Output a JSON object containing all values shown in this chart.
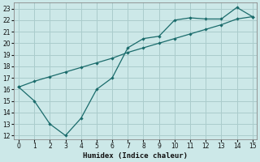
{
  "xlabel": "Humidex (Indice chaleur)",
  "bg_color": "#cce8e8",
  "grid_color": "#aacccc",
  "line_color": "#1a6b6b",
  "jagged_x": [
    0,
    1,
    2,
    3,
    4,
    5,
    6,
    7,
    8,
    9,
    10,
    11,
    12,
    13,
    14,
    15
  ],
  "jagged_y": [
    16.2,
    15.0,
    13.0,
    12.0,
    13.5,
    16.0,
    17.0,
    19.6,
    20.4,
    20.6,
    22.0,
    22.2,
    22.1,
    22.1,
    23.1,
    22.3
  ],
  "straight_x": [
    0,
    1,
    2,
    3,
    4,
    5,
    6,
    7,
    8,
    9,
    10,
    11,
    12,
    13,
    14,
    15
  ],
  "straight_y": [
    16.2,
    16.7,
    17.1,
    17.5,
    17.9,
    18.3,
    18.7,
    19.2,
    19.6,
    20.0,
    20.4,
    20.8,
    21.2,
    21.6,
    22.1,
    22.3
  ],
  "xlim": [
    -0.3,
    15.3
  ],
  "ylim": [
    11.7,
    23.5
  ],
  "xticks": [
    0,
    1,
    2,
    3,
    4,
    5,
    6,
    7,
    8,
    9,
    10,
    11,
    12,
    13,
    14,
    15
  ],
  "yticks": [
    12,
    13,
    14,
    15,
    16,
    17,
    18,
    19,
    20,
    21,
    22,
    23
  ]
}
